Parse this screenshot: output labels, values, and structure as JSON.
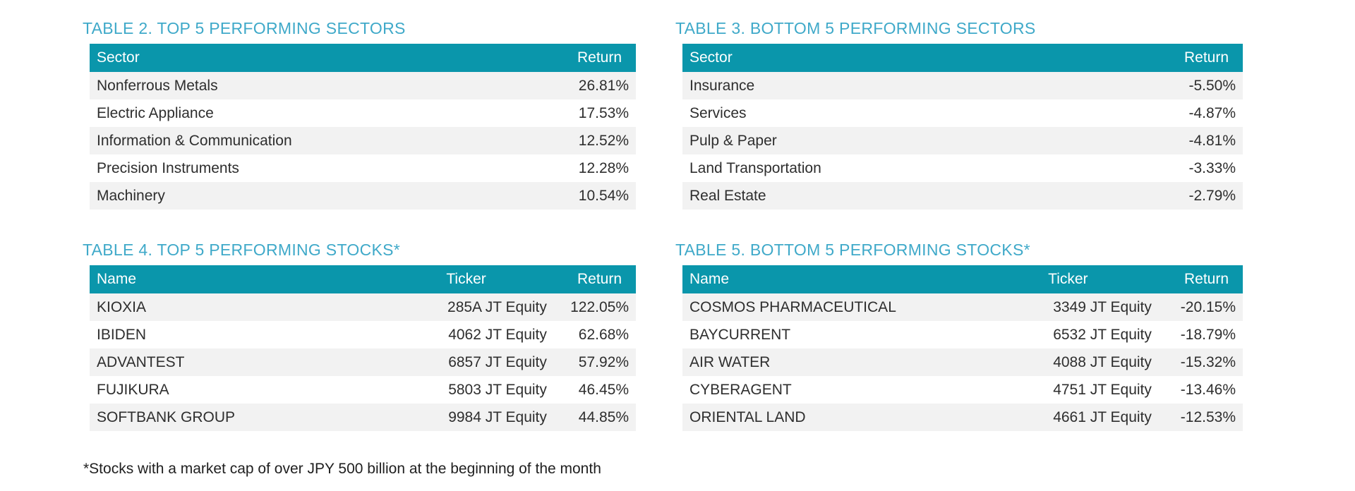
{
  "colors": {
    "header_bg": "#0a96ab",
    "header_text": "#ffffff",
    "title_text": "#3fa9c9",
    "row_stripe_bg": "#f2f2f2",
    "row_bg": "#ffffff",
    "body_text": "#2e2e2e"
  },
  "tables": [
    {
      "title": "TABLE 2. TOP 5 PERFORMING SECTORS",
      "columns": [
        {
          "label": "Sector",
          "align": "left",
          "width": "80%"
        },
        {
          "label": "Return",
          "align": "right",
          "width": "20%"
        }
      ],
      "rows": [
        [
          "Nonferrous Metals",
          "26.81%"
        ],
        [
          "Electric Appliance",
          "17.53%"
        ],
        [
          "Information & Communication",
          "12.52%"
        ],
        [
          "Precision Instruments",
          "12.28%"
        ],
        [
          "Machinery",
          "10.54%"
        ]
      ]
    },
    {
      "title": "TABLE 3. BOTTOM 5 PERFORMING SECTORS",
      "columns": [
        {
          "label": "Sector",
          "align": "left",
          "width": "80%"
        },
        {
          "label": "Return",
          "align": "right",
          "width": "20%"
        }
      ],
      "rows": [
        [
          "Insurance",
          "-5.50%"
        ],
        [
          "Services",
          "-4.87%"
        ],
        [
          "Pulp & Paper",
          "-4.81%"
        ],
        [
          "Land Transportation",
          "-3.33%"
        ],
        [
          "Real Estate",
          "-2.79%"
        ]
      ]
    },
    {
      "title": "TABLE 4. TOP 5 PERFORMING STOCKS*",
      "columns": [
        {
          "label": "Name",
          "align": "left",
          "width": "64%"
        },
        {
          "label": "Ticker",
          "align": "right",
          "header_align": "left",
          "width": "21%"
        },
        {
          "label": "Return",
          "align": "right",
          "width": "15%"
        }
      ],
      "rows": [
        [
          "KIOXIA",
          "285A JT Equity",
          "122.05%"
        ],
        [
          "IBIDEN",
          "4062 JT Equity",
          "62.68%"
        ],
        [
          "ADVANTEST",
          "6857 JT Equity",
          "57.92%"
        ],
        [
          "FUJIKURA",
          "5803 JT Equity",
          "46.45%"
        ],
        [
          "SOFTBANK GROUP",
          "9984 JT Equity",
          "44.85%"
        ]
      ]
    },
    {
      "title": "TABLE 5. BOTTOM 5 PERFORMING STOCKS*",
      "columns": [
        {
          "label": "Name",
          "align": "left",
          "width": "64%"
        },
        {
          "label": "Ticker",
          "align": "right",
          "header_align": "left",
          "width": "21%"
        },
        {
          "label": "Return",
          "align": "right",
          "width": "15%"
        }
      ],
      "rows": [
        [
          "COSMOS PHARMACEUTICAL",
          "3349 JT Equity",
          "-20.15%"
        ],
        [
          "BAYCURRENT",
          "6532 JT Equity",
          "-18.79%"
        ],
        [
          "AIR WATER",
          "4088 JT Equity",
          "-15.32%"
        ],
        [
          "CYBERAGENT",
          "4751 JT Equity",
          "-13.46%"
        ],
        [
          "ORIENTAL LAND",
          "4661 JT Equity",
          "-12.53%"
        ]
      ]
    }
  ],
  "footnote": "*Stocks with a market cap of over JPY 500 billion at the beginning of the month"
}
